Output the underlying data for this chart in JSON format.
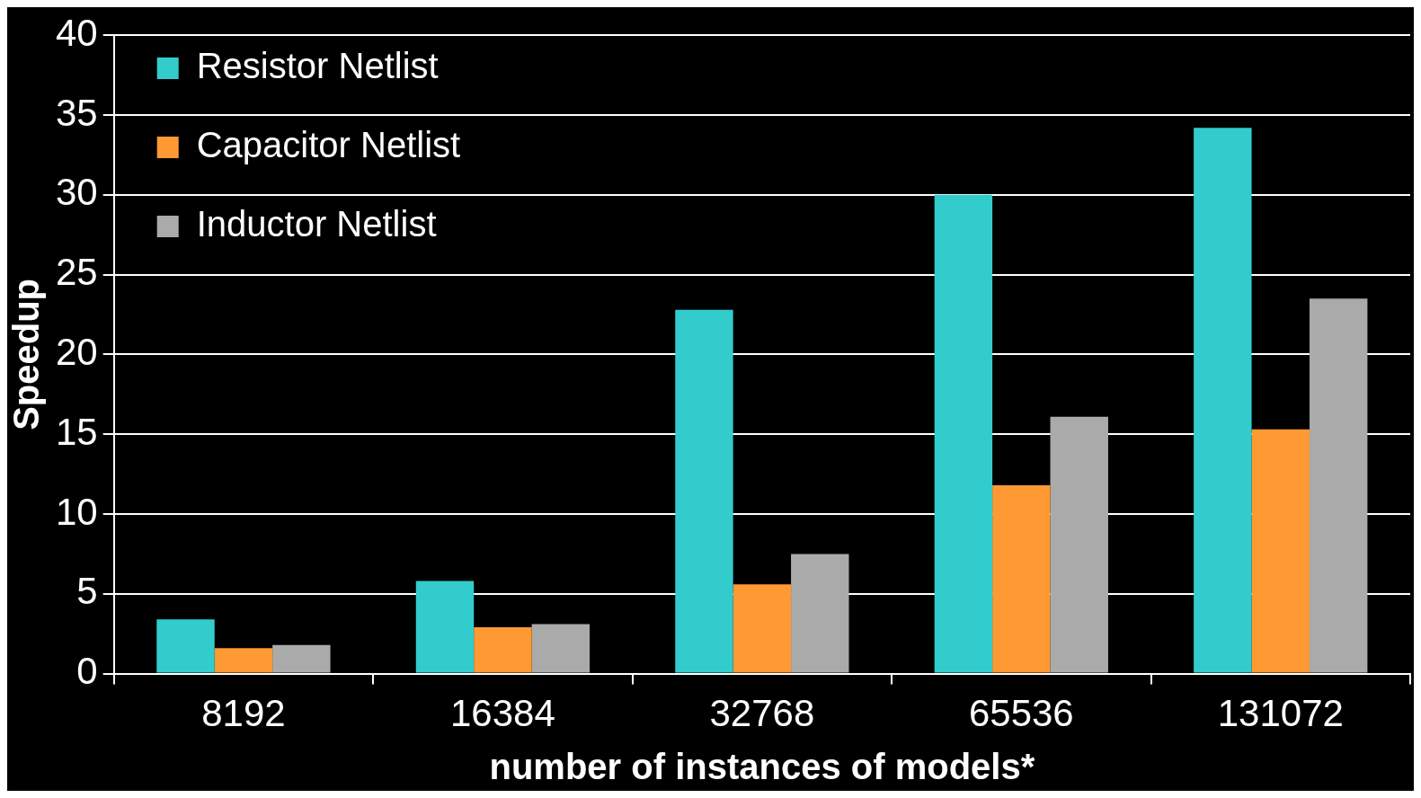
{
  "chart_data": {
    "type": "bar",
    "xlabel": "number of instances of models*",
    "ylabel": "Speedup",
    "categories": [
      "8192",
      "16384",
      "32768",
      "65536",
      "131072"
    ],
    "series": [
      {
        "name": "Resistor Netlist",
        "color": "#33cccc",
        "values": [
          3.4,
          5.8,
          22.8,
          30.0,
          34.2
        ]
      },
      {
        "name": "Capacitor Netlist",
        "color": "#ff9933",
        "values": [
          1.6,
          2.9,
          5.6,
          11.8,
          15.3
        ]
      },
      {
        "name": "Inductor Netlist",
        "color": "#aaaaaa",
        "values": [
          1.8,
          3.1,
          7.5,
          16.1,
          23.5
        ]
      }
    ],
    "ylim": [
      0,
      40
    ],
    "yticks": [
      0,
      5,
      10,
      15,
      20,
      25,
      30,
      35,
      40
    ],
    "grid": "y",
    "legend": "top left"
  }
}
